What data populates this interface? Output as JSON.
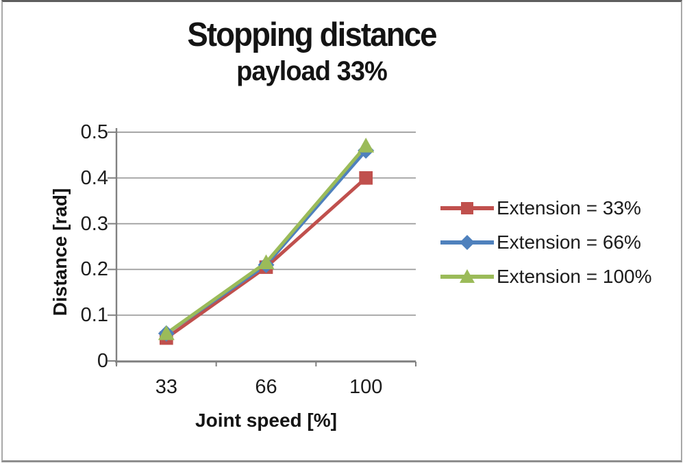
{
  "chart_data": {
    "type": "line",
    "title": "Stopping distance",
    "subtitle": "payload 33%",
    "xlabel": "Joint speed [%]",
    "ylabel": "Distance [rad]",
    "categories": [
      33,
      66,
      100
    ],
    "category_labels": [
      "33",
      "66",
      "100"
    ],
    "series": [
      {
        "name": "Extension = 33%",
        "marker": "square",
        "color": "#c0504d",
        "values": [
          0.05,
          0.205,
          0.4
        ]
      },
      {
        "name": "Extension = 66%",
        "marker": "diamond",
        "color": "#4f81bd",
        "values": [
          0.06,
          0.21,
          0.46
        ]
      },
      {
        "name": "Extension = 100%",
        "marker": "triangle",
        "color": "#9bbb59",
        "values": [
          0.06,
          0.215,
          0.47
        ]
      }
    ],
    "ylim": [
      0,
      0.5
    ],
    "yticks": [
      0,
      0.1,
      0.2,
      0.3,
      0.4,
      0.5
    ],
    "ytick_labels": [
      "0",
      "0.1",
      "0.2",
      "0.3",
      "0.4",
      "0.5"
    ],
    "grid": true,
    "gridline_color": "#9a9a9a",
    "axis_color": "#808080",
    "legend_position": "right"
  }
}
